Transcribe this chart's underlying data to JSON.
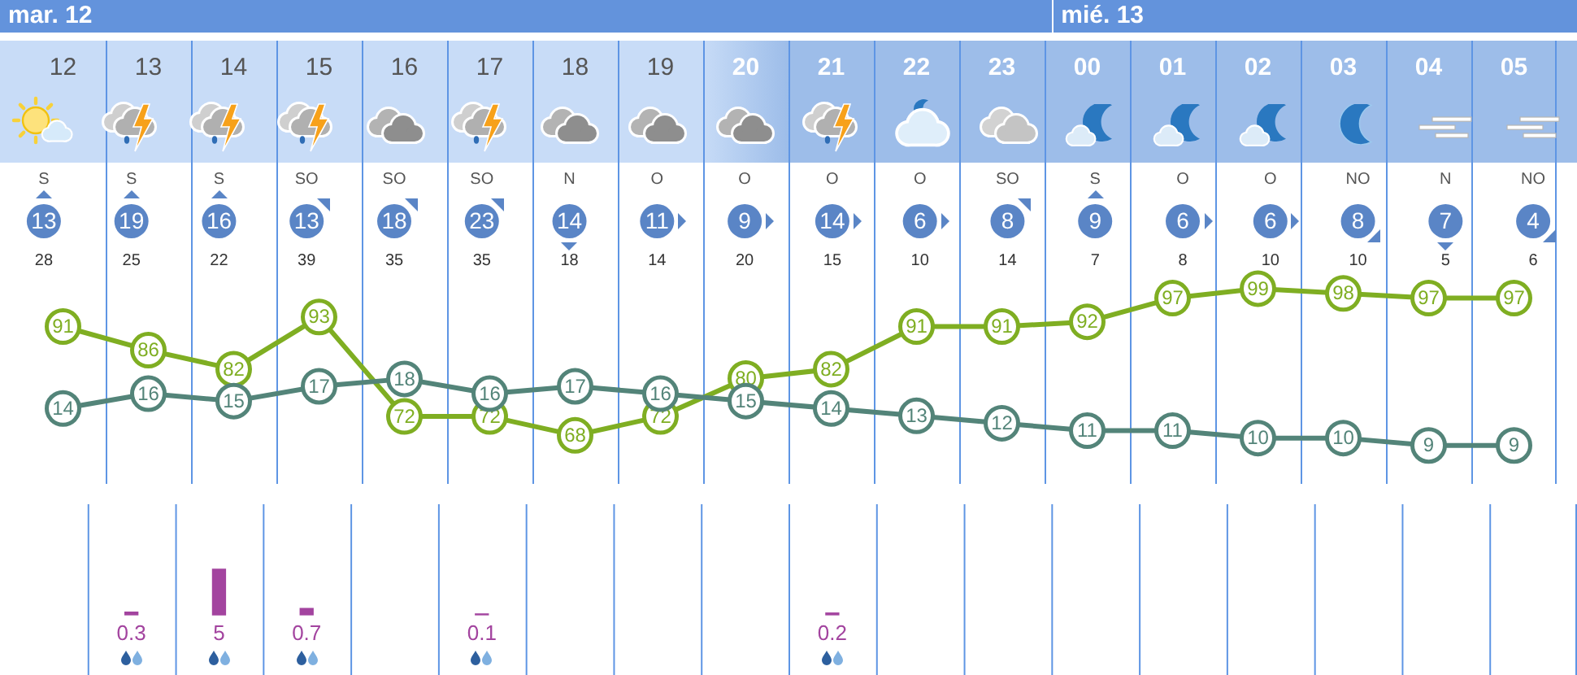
{
  "chart_data": [
    {
      "type": "line",
      "categories": [
        "12",
        "13",
        "14",
        "15",
        "16",
        "17",
        "18",
        "19",
        "20",
        "21",
        "22",
        "23",
        "00",
        "01",
        "02",
        "03",
        "04",
        "05"
      ],
      "series": [
        {
          "color": "#538479",
          "marker": "circle",
          "axis": "y2",
          "values": [
            14,
            16,
            15,
            17,
            18,
            16,
            17,
            16,
            15,
            14,
            13,
            12,
            11,
            11,
            10,
            10,
            9,
            9
          ]
        },
        {
          "color": "#7fae22",
          "marker": "circle",
          "values": [
            91,
            86,
            82,
            93,
            72,
            72,
            68,
            72,
            80,
            82,
            91,
            91,
            92,
            97,
            99,
            98,
            97,
            97
          ]
        }
      ],
      "annotations": [
        "mar. 12",
        "mié. 13"
      ],
      "data_labels": true,
      "grid": "x",
      "tick_labels": "x"
    },
    {
      "type": "other",
      "values": [
        13,
        19,
        16,
        13,
        18,
        23,
        14,
        11,
        9,
        14,
        6,
        8,
        9,
        6,
        6,
        8,
        7,
        4
      ],
      "color": "#5a85c6",
      "annotations": [
        "S",
        "S",
        "S",
        "SO",
        "SO",
        "SO",
        "N",
        "O",
        "O",
        "O",
        "O",
        "SO",
        "S",
        "O",
        "O",
        "NO",
        "N",
        "NO"
      ],
      "data_labels": true
    },
    {
      "type": "other",
      "values": [
        28,
        25,
        22,
        39,
        35,
        35,
        18,
        14,
        20,
        15,
        10,
        14,
        7,
        8,
        10,
        10,
        5,
        6
      ],
      "color": "#333333",
      "data_labels": true
    },
    {
      "type": "bar",
      "categories": [
        "12",
        "13",
        "14",
        "15",
        "16",
        "17",
        "18",
        "19",
        "20",
        "21",
        "22",
        "23",
        "00",
        "01",
        "02",
        "03",
        "04",
        "05"
      ],
      "values": [
        null,
        0.3,
        5,
        0.7,
        null,
        0.1,
        null,
        null,
        null,
        0.2,
        null,
        null,
        null,
        null,
        null,
        null,
        null,
        null
      ],
      "color": "#a3449f",
      "data_labels": true,
      "grid": "x",
      "tick_labels": false
    }
  ]
}
